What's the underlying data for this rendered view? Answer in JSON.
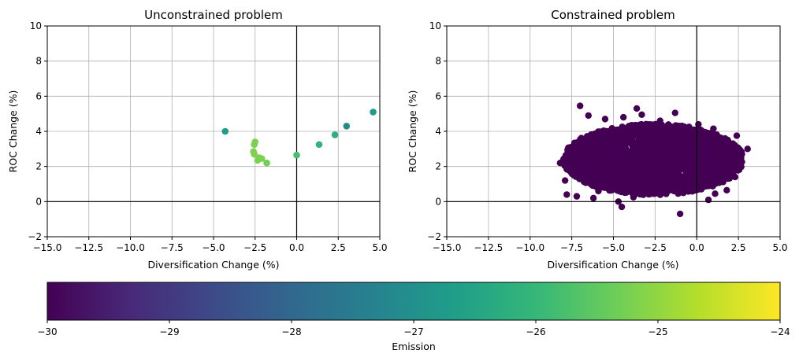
{
  "chart_data": {
    "type": "scatter",
    "colormap": "viridis",
    "colormap_stops": [
      "#440154",
      "#482878",
      "#3e4989",
      "#31688e",
      "#26828e",
      "#1f9e89",
      "#35b779",
      "#6ece58",
      "#b5de2b",
      "#fde725"
    ],
    "colorbar": {
      "label": "Emission",
      "range": [
        -30,
        -24
      ],
      "ticks": [
        -30,
        -29,
        -28,
        -27,
        -26,
        -25,
        -24
      ],
      "tick_labels": [
        "−30",
        "−29",
        "−28",
        "−27",
        "−26",
        "−25",
        "−24"
      ]
    },
    "panels": [
      {
        "title": "Unconstrained problem",
        "xlabel": "Diversification Change (%)",
        "ylabel": "ROC Change (%)",
        "xlim": [
          -15,
          5
        ],
        "ylim": [
          -2,
          10
        ],
        "xticks": [
          -15,
          -12.5,
          -10,
          -7.5,
          -5,
          -2.5,
          0,
          2.5,
          5
        ],
        "xtick_labels": [
          "−15.0",
          "−12.5",
          "−10.0",
          "−7.5",
          "−5.0",
          "−2.5",
          "0.0",
          "2.5",
          "5.0"
        ],
        "yticks": [
          -2,
          0,
          2,
          4,
          6,
          8,
          10
        ],
        "ytick_labels": [
          "−2",
          "0",
          "2",
          "4",
          "6",
          "8",
          "10"
        ],
        "grid": true,
        "points": [
          {
            "x": -4.3,
            "y": 4.0,
            "emission": -26.7
          },
          {
            "x": -2.5,
            "y": 3.4,
            "emission": -25.2
          },
          {
            "x": -2.55,
            "y": 3.25,
            "emission": -25.2
          },
          {
            "x": -2.6,
            "y": 2.85,
            "emission": -25.2
          },
          {
            "x": -2.55,
            "y": 2.7,
            "emission": -25.2
          },
          {
            "x": -2.25,
            "y": 2.5,
            "emission": -25.2
          },
          {
            "x": -2.1,
            "y": 2.45,
            "emission": -25.2
          },
          {
            "x": -2.35,
            "y": 2.35,
            "emission": -25.2
          },
          {
            "x": -1.8,
            "y": 2.2,
            "emission": -25.3
          },
          {
            "x": 0.0,
            "y": 2.65,
            "emission": -25.8
          },
          {
            "x": 1.35,
            "y": 3.25,
            "emission": -26.1
          },
          {
            "x": 2.3,
            "y": 3.8,
            "emission": -26.2
          },
          {
            "x": 3.0,
            "y": 4.3,
            "emission": -27.1
          },
          {
            "x": 4.6,
            "y": 5.1,
            "emission": -26.7
          }
        ]
      },
      {
        "title": "Constrained problem",
        "xlabel": "Diversification Change (%)",
        "ylabel": "ROC Change (%)",
        "xlim": [
          -15,
          5
        ],
        "ylim": [
          -2,
          10
        ],
        "xticks": [
          -15,
          -12.5,
          -10,
          -7.5,
          -5,
          -2.5,
          0,
          2.5,
          5
        ],
        "xtick_labels": [
          "−15.0",
          "−12.5",
          "−10.0",
          "−7.5",
          "−5.0",
          "−2.5",
          "0.0",
          "2.5",
          "5.0"
        ],
        "yticks": [
          -2,
          0,
          2,
          4,
          6,
          8,
          10
        ],
        "ytick_labels": [
          "−2",
          "0",
          "2",
          "4",
          "6",
          "8",
          "10"
        ],
        "grid": true,
        "point_emission": -30,
        "cloud": {
          "x_range": [
            -8.3,
            3.1
          ],
          "y_range": [
            0.0,
            4.4
          ],
          "center": [
            -2.6,
            2.4
          ],
          "note": "dense cloud of overlapping points at emission -30"
        },
        "points": [
          {
            "x": -7.0,
            "y": 5.45
          },
          {
            "x": -6.5,
            "y": 4.9
          },
          {
            "x": -3.6,
            "y": 5.3
          },
          {
            "x": -1.3,
            "y": 5.05
          },
          {
            "x": -3.3,
            "y": 4.95
          },
          {
            "x": -5.5,
            "y": 4.7
          },
          {
            "x": -4.4,
            "y": 4.8
          },
          {
            "x": -2.2,
            "y": 4.6
          },
          {
            "x": 0.1,
            "y": 4.4
          },
          {
            "x": 1.0,
            "y": 4.15
          },
          {
            "x": 2.4,
            "y": 3.75
          },
          {
            "x": 3.05,
            "y": 3.0
          },
          {
            "x": -8.2,
            "y": 2.2
          },
          {
            "x": -7.9,
            "y": 1.2
          },
          {
            "x": -7.8,
            "y": 0.4
          },
          {
            "x": -7.2,
            "y": 0.3
          },
          {
            "x": -6.2,
            "y": 0.2
          },
          {
            "x": -4.5,
            "y": -0.3
          },
          {
            "x": -4.7,
            "y": 0.0
          },
          {
            "x": -3.8,
            "y": 0.25
          },
          {
            "x": -1.0,
            "y": -0.7
          },
          {
            "x": 0.7,
            "y": 0.1
          },
          {
            "x": 1.1,
            "y": 0.45
          },
          {
            "x": 1.8,
            "y": 0.65
          },
          {
            "x": 2.3,
            "y": 1.4
          },
          {
            "x": -0.3,
            "y": 1.1
          },
          {
            "x": -5.9,
            "y": 0.6
          }
        ]
      }
    ]
  }
}
